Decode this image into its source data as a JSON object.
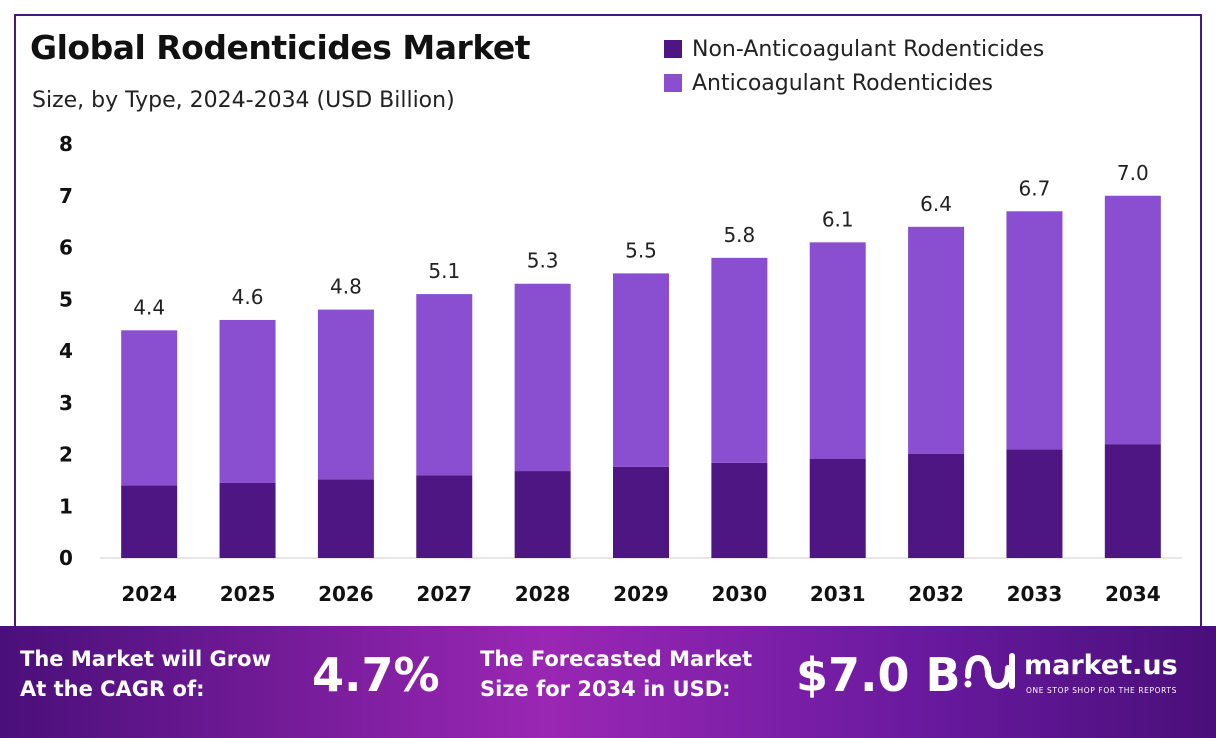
{
  "header": {
    "title": "Global Rodenticides Market",
    "subtitle": "Size, by Type, 2024-2034 (USD Billion)"
  },
  "legend": {
    "items": [
      {
        "label": "Non-Anticoagulant Rodenticides",
        "color": "#4e1682"
      },
      {
        "label": "Anticoagulant Rodenticides",
        "color": "#8a4fd0"
      }
    ]
  },
  "chart_data": {
    "type": "bar",
    "stacked": true,
    "categories": [
      "2024",
      "2025",
      "2026",
      "2027",
      "2028",
      "2029",
      "2030",
      "2031",
      "2032",
      "2033",
      "2034"
    ],
    "series": [
      {
        "name": "Non-Anticoagulant Rodenticides",
        "color": "#4e1682",
        "values": [
          1.4,
          1.45,
          1.52,
          1.6,
          1.68,
          1.76,
          1.84,
          1.92,
          2.01,
          2.1,
          2.2
        ]
      },
      {
        "name": "Anticoagulant Rodenticides",
        "color": "#8a4fd0",
        "values": [
          3.0,
          3.15,
          3.28,
          3.5,
          3.62,
          3.74,
          3.96,
          4.18,
          4.39,
          4.6,
          4.8
        ]
      }
    ],
    "totals": [
      "4.4",
      "4.6",
      "4.8",
      "5.1",
      "5.3",
      "5.5",
      "5.8",
      "6.1",
      "6.4",
      "6.7",
      "7.0"
    ],
    "yticks": [
      "0",
      "1",
      "2",
      "3",
      "4",
      "5",
      "6",
      "7",
      "8"
    ],
    "ylim": [
      0,
      8
    ],
    "grid": false,
    "legend_position": "top-right"
  },
  "banner": {
    "cagr_text_line1": "The Market will Grow",
    "cagr_text_line2": "At the CAGR of:",
    "cagr_value": "4.7%",
    "forecast_text_line1": "The Forecasted Market",
    "forecast_text_line2": "Size for 2034 in USD:",
    "forecast_value": "$7.0 B",
    "brand_name": "market.us",
    "brand_tagline": "ONE STOP SHOP FOR THE REPORTS"
  }
}
